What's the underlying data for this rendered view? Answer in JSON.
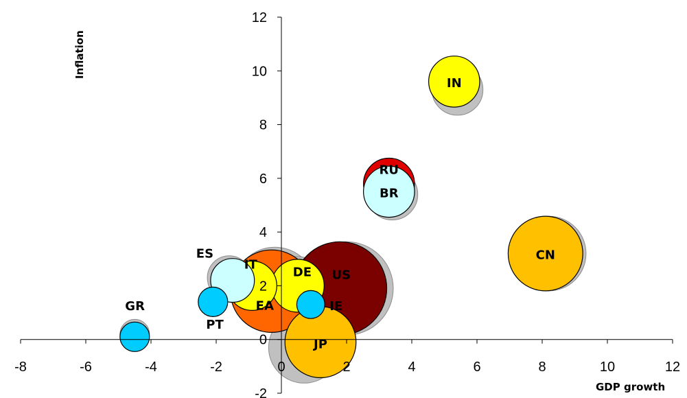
{
  "chart_data": {
    "type": "bubble",
    "xlabel": "GDP growth",
    "ylabel": "Inflation",
    "xlim": [
      -8,
      12
    ],
    "ylim": [
      -2,
      12
    ],
    "xticks": [
      "-8",
      "-6",
      "-4",
      "-2",
      "0",
      "2",
      "4",
      "6",
      "8",
      "10",
      "12"
    ],
    "yticks": [
      "-2",
      "0",
      "2",
      "4",
      "6",
      "8",
      "10",
      "12"
    ],
    "grid": false,
    "legend": "none",
    "colors": {
      "shadow": "#c0c0c0",
      "dark_red": "#7b0000",
      "red": "#e00000",
      "orange": "#ff6600",
      "gold": "#ffc000",
      "yellow": "#ffff00",
      "light_cyan": "#ccffff",
      "cyan": "#00ccff"
    },
    "series": [
      {
        "label": "JP",
        "x": 1.2,
        "y": -0.1,
        "size": 0.58,
        "color": "#ffc000",
        "shadow": {
          "x": 0.7,
          "y": -0.3,
          "size": 0.58
        }
      },
      {
        "label": "US",
        "x": 1.8,
        "y": 1.9,
        "size": 1.0,
        "color": "#7b0000",
        "shadow": {
          "x": 2.0,
          "y": 1.9,
          "size": 1.0
        }
      },
      {
        "label": "EA",
        "x": -0.3,
        "y": 1.8,
        "size": 0.78,
        "color": "#ff6600",
        "shadow": {
          "x": -0.2,
          "y": 1.9,
          "size": 0.78
        }
      },
      {
        "label": "DE",
        "x": 0.5,
        "y": 2.0,
        "size": 0.32,
        "color": "#ffff00",
        "shadow": {
          "x": 0.5,
          "y": 2.1,
          "size": 0.32
        }
      },
      {
        "label": "IT",
        "x": -0.9,
        "y": 2.0,
        "size": 0.28,
        "color": "#ffff00",
        "shadow": {
          "x": -0.8,
          "y": 2.1,
          "size": 0.28
        }
      },
      {
        "label": "ES",
        "x": -1.5,
        "y": 2.2,
        "size": 0.22,
        "color": "#ccffff",
        "shadow": {
          "x": -1.6,
          "y": 2.3,
          "size": 0.22
        }
      },
      {
        "label": "PT",
        "x": -2.1,
        "y": 1.4,
        "size": 0.1,
        "color": "#00ccff",
        "shadow": null
      },
      {
        "label": "GR",
        "x": -4.5,
        "y": 0.1,
        "size": 0.1,
        "color": "#00ccff",
        "shadow": {
          "x": -4.5,
          "y": 0.2,
          "size": 0.1
        }
      },
      {
        "label": "IE",
        "x": 0.9,
        "y": 1.3,
        "size": 0.09,
        "color": "#00ccff",
        "shadow": null
      },
      {
        "label": "CN",
        "x": 8.1,
        "y": 3.2,
        "size": 0.64,
        "color": "#ffc000",
        "shadow": {
          "x": 8.2,
          "y": 3.2,
          "size": 0.64
        }
      },
      {
        "label": "IN",
        "x": 5.3,
        "y": 9.6,
        "size": 0.3,
        "color": "#ffff00",
        "shadow": {
          "x": 5.4,
          "y": 9.3,
          "size": 0.3
        }
      },
      {
        "label": "RU",
        "x": 3.3,
        "y": 5.8,
        "size": 0.3,
        "color": "#e00000",
        "shadow": null
      },
      {
        "label": "BR",
        "x": 3.3,
        "y": 5.5,
        "size": 0.3,
        "color": "#ccffff",
        "shadow": {
          "x": 3.4,
          "y": 5.4,
          "size": 0.3
        }
      }
    ]
  }
}
